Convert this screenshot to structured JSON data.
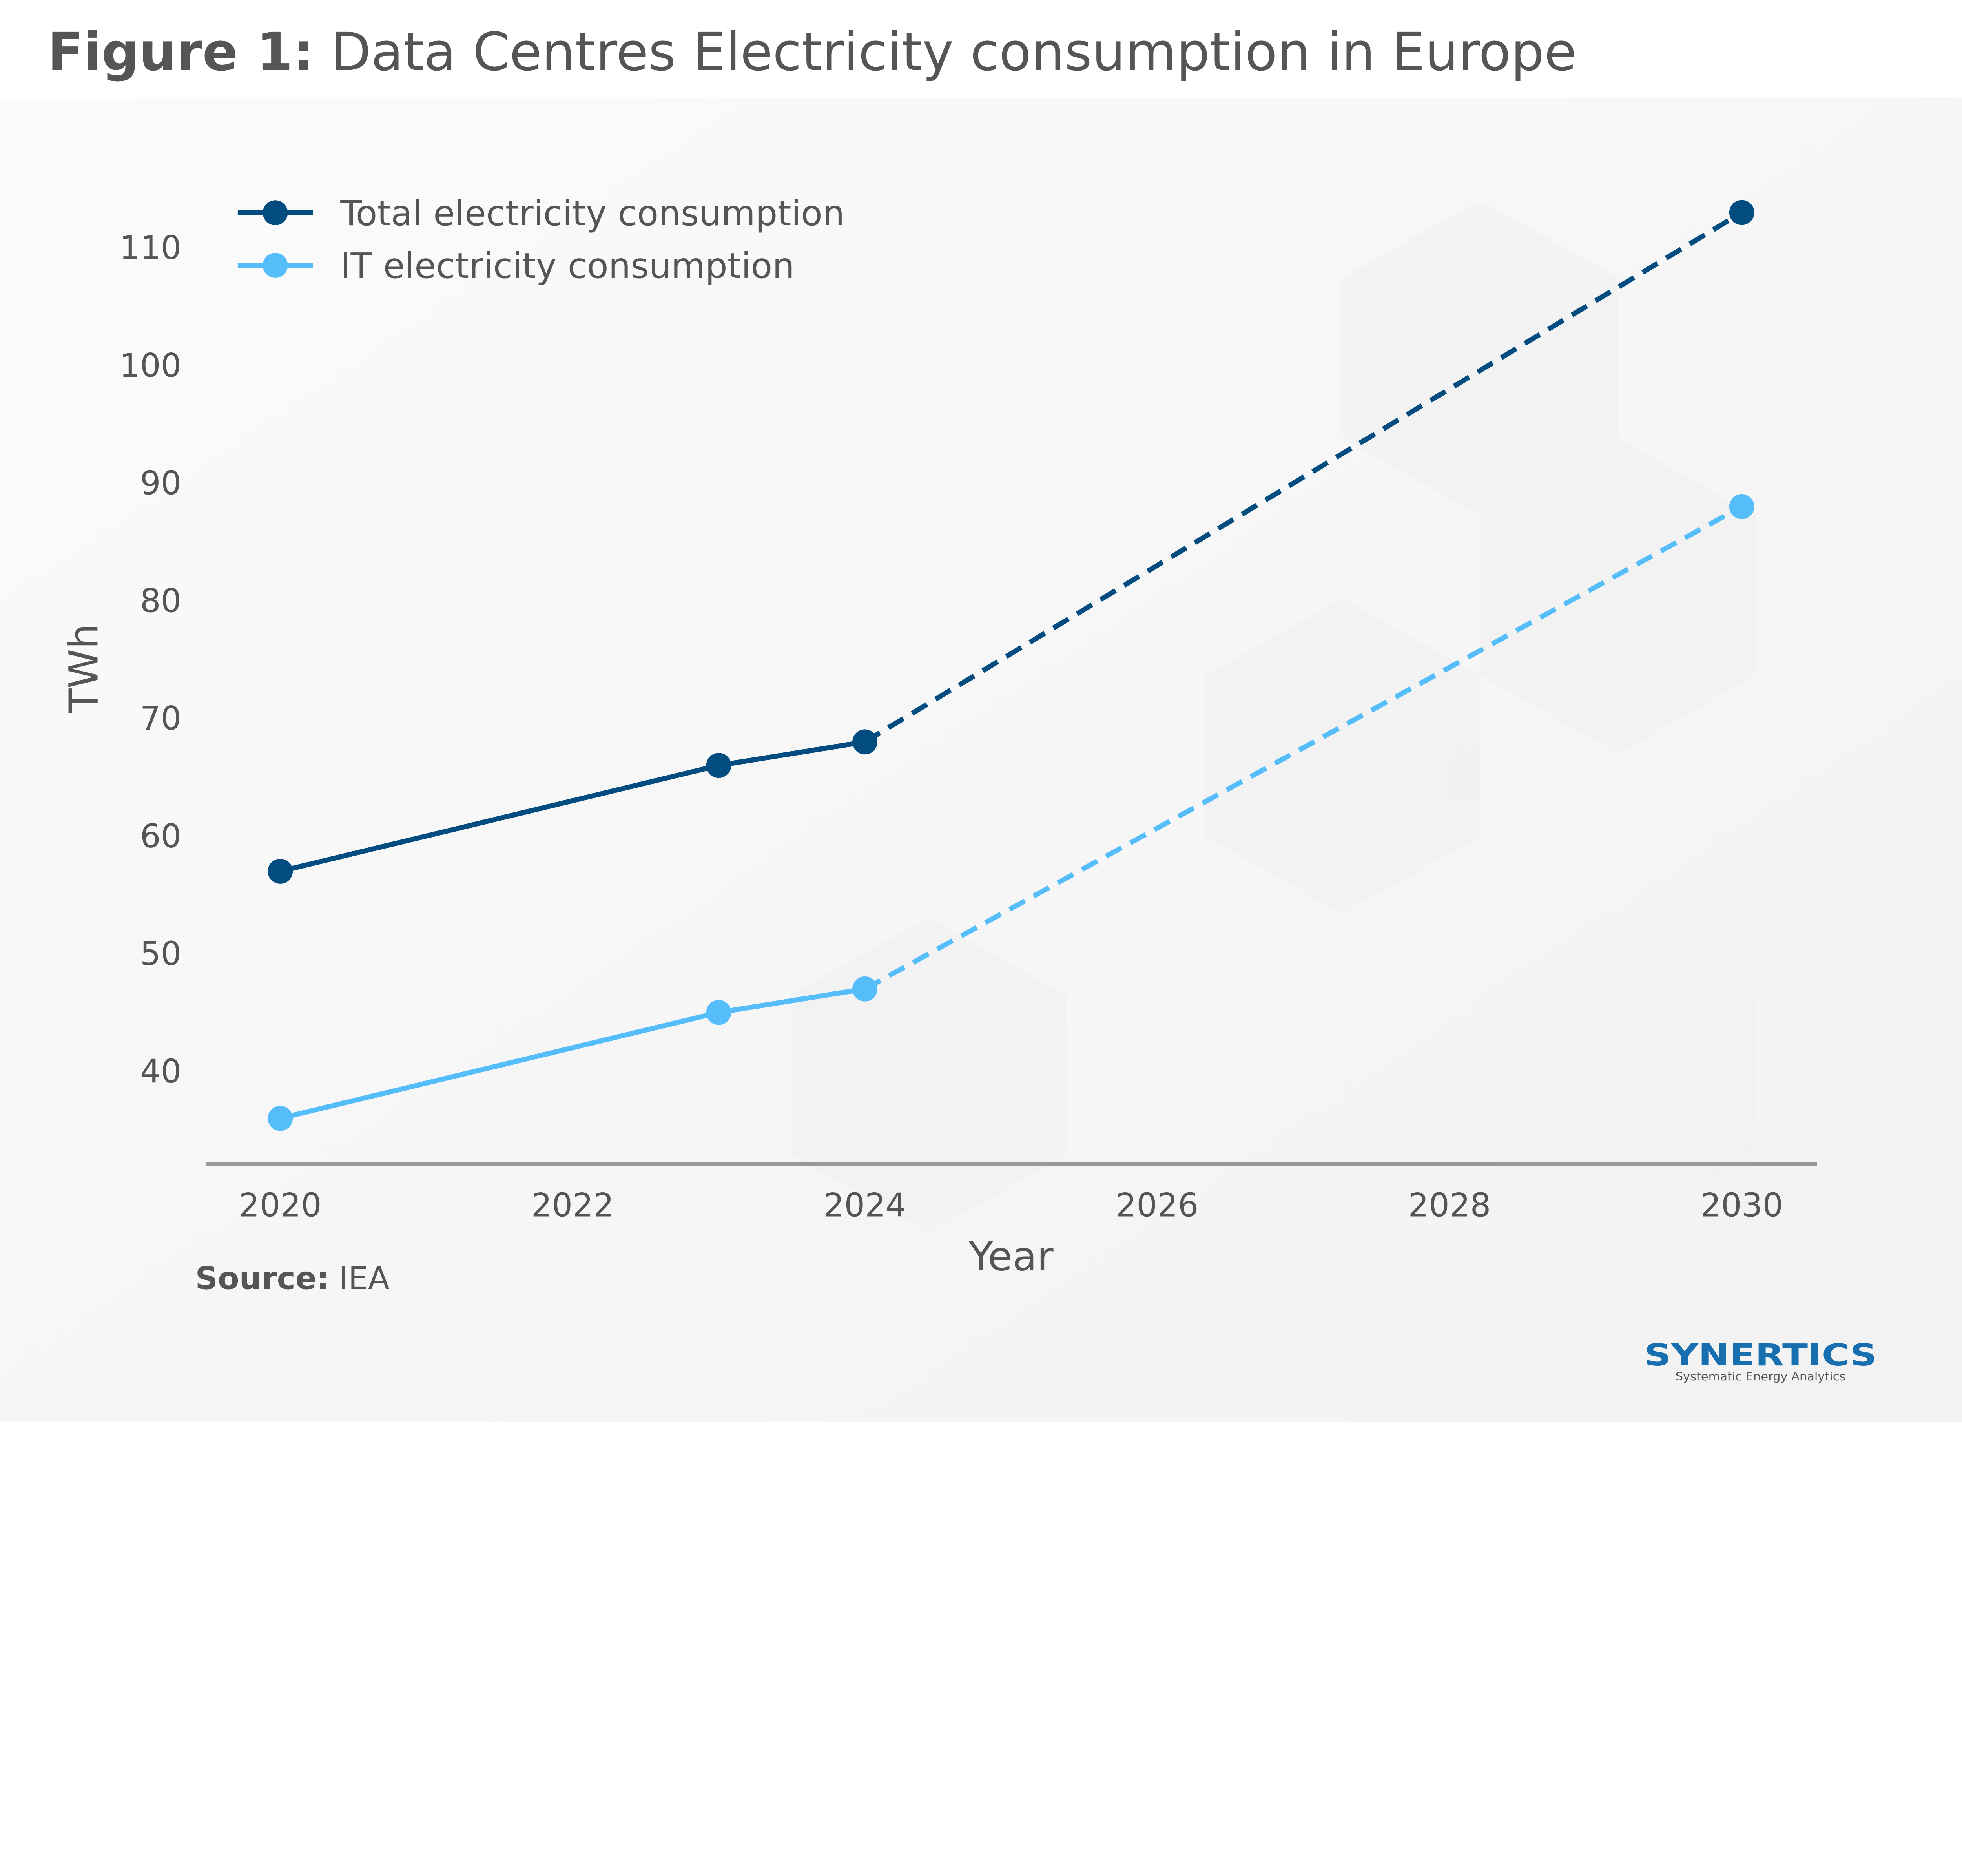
{
  "header": {
    "title_bold": "Figure 1:",
    "title_rest": " Data Centres Electricity consumption in Europe"
  },
  "source": {
    "label": "Source:",
    "value": " IEA"
  },
  "logo": {
    "name": "SYNERTICS",
    "tagline": "Systematic Energy Analytics",
    "color": "#176fb0"
  },
  "chart_data": {
    "type": "line",
    "title": "Data Centres Electricity consumption in Europe",
    "xlabel": "Year",
    "ylabel": "TWh",
    "xlim": [
      2019.5,
      2030.5
    ],
    "ylim": [
      33,
      115
    ],
    "x_ticks": [
      "2020",
      "2022",
      "2024",
      "2026",
      "2028",
      "2030"
    ],
    "y_ticks": [
      "40",
      "50",
      "60",
      "70",
      "80",
      "90",
      "100",
      "110"
    ],
    "grid": false,
    "legend_position": "top-left",
    "projection_from": 2024,
    "series": [
      {
        "name": "Total electricity consumption",
        "color": "#034c80",
        "x": [
          2020,
          2023,
          2024,
          2030
        ],
        "values": [
          57,
          66,
          68,
          113
        ]
      },
      {
        "name": "IT electricity consumption",
        "color": "#55bdfa",
        "x": [
          2020,
          2023,
          2024,
          2030
        ],
        "values": [
          36,
          45,
          47,
          88
        ]
      }
    ]
  }
}
